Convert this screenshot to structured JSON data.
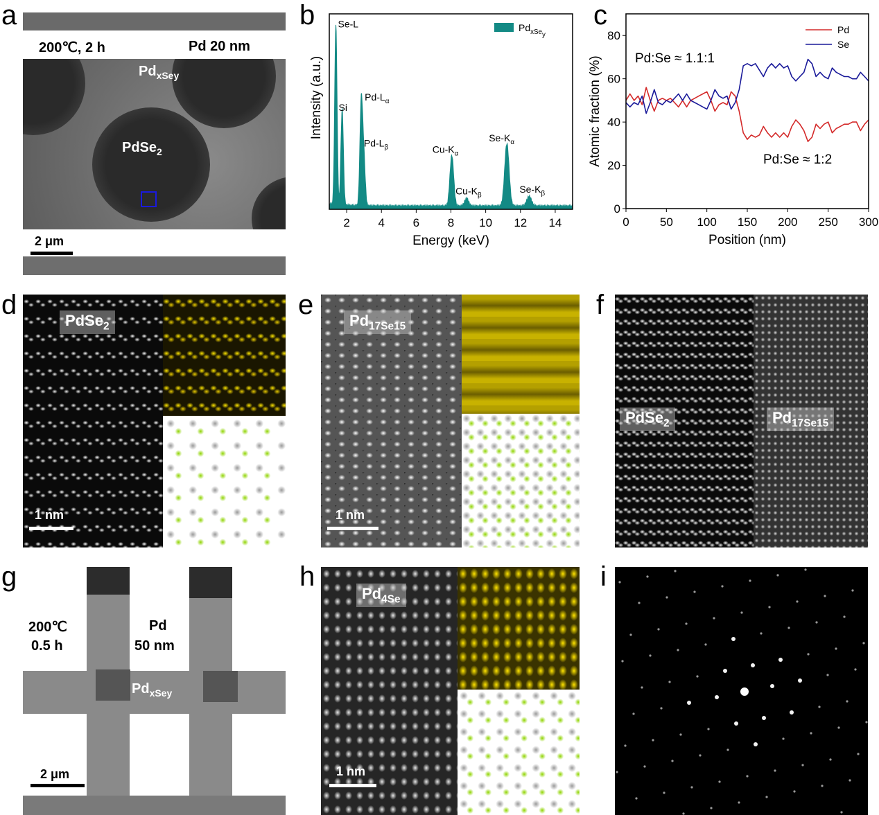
{
  "panel_letters": [
    "a",
    "b",
    "c",
    "d",
    "e",
    "f",
    "g",
    "h",
    "i"
  ],
  "panel_a": {
    "condition": "200℃, 2 h",
    "thickness": "Pd 20 nm",
    "region_outer": "Pd_xSe_y",
    "region_inner": "PdSe_2",
    "scale_bar": "2 μm",
    "box_color": "#1a1adc"
  },
  "panel_d": {
    "phase": "PdSe_2",
    "scale_bar": "1 nm"
  },
  "panel_e": {
    "phase": "Pd_17Se_15",
    "scale_bar": "1 nm"
  },
  "panel_f": {
    "phase_left": "PdSe_2",
    "phase_right": "Pd_17Se_15"
  },
  "panel_g": {
    "temperature": "200℃",
    "time": "0.5 h",
    "metal": "Pd",
    "thickness": "50 nm",
    "region": "Pd_xSe_y",
    "scale_bar": "2 μm"
  },
  "panel_h": {
    "phase": "Pd_4Se",
    "scale_bar": "1 nm"
  },
  "chart_data": [
    {
      "panel": "b",
      "type": "area",
      "xlabel": "Energy (keV)",
      "ylabel": "Intensity (a.u.)",
      "xlim": [
        1,
        15
      ],
      "xticks": [
        2,
        4,
        6,
        8,
        10,
        12,
        14
      ],
      "yticks_shown": false,
      "legend": {
        "label": "Pd_xSe_y",
        "position": "top-right"
      },
      "color": "#138a85",
      "peaks": [
        {
          "label": "Se-L",
          "energy": 1.38,
          "intensity": 92
        },
        {
          "label": "Si",
          "energy": 1.74,
          "intensity": 49
        },
        {
          "label": "Pd-L_α",
          "energy": 2.84,
          "intensity": 53
        },
        {
          "label": "Pd-L_β",
          "energy": 2.99,
          "intensity": 24
        },
        {
          "label": "Cu-K_α",
          "energy": 8.05,
          "intensity": 26
        },
        {
          "label": "Cu-K_β",
          "energy": 8.9,
          "intensity": 4
        },
        {
          "label": "Se-K_α",
          "energy": 11.22,
          "intensity": 32
        },
        {
          "label": "Se-K_β",
          "energy": 12.5,
          "intensity": 5
        }
      ]
    },
    {
      "panel": "c",
      "type": "line",
      "xlabel": "Position (nm)",
      "ylabel": "Atomic fraction (%)",
      "xlim": [
        0,
        300
      ],
      "ylim": [
        0,
        90
      ],
      "xticks": [
        0,
        50,
        100,
        150,
        200,
        250,
        300
      ],
      "yticks": [
        0,
        20,
        40,
        60,
        80
      ],
      "legend_position": "top-right",
      "annotations": [
        "Pd:Se ≈ 1.1:1",
        "Pd:Se ≈ 1:2"
      ],
      "x": [
        0,
        5,
        10,
        15,
        20,
        25,
        30,
        35,
        40,
        45,
        50,
        55,
        60,
        65,
        70,
        75,
        80,
        85,
        90,
        95,
        100,
        105,
        110,
        115,
        120,
        125,
        130,
        135,
        140,
        145,
        150,
        155,
        160,
        165,
        170,
        175,
        180,
        185,
        190,
        195,
        200,
        205,
        210,
        215,
        220,
        225,
        230,
        235,
        240,
        245,
        250,
        255,
        260,
        265,
        270,
        275,
        280,
        285,
        290,
        295,
        300
      ],
      "series": [
        {
          "name": "Pd",
          "color": "#d42a2a",
          "values": [
            50,
            53,
            50,
            52,
            48,
            56,
            50,
            45,
            50,
            51,
            50,
            51,
            49,
            47,
            50,
            47,
            50,
            51,
            52,
            53,
            54,
            50,
            45,
            48,
            49,
            48,
            54,
            52,
            45,
            35,
            32,
            34,
            33,
            34,
            38,
            35,
            33,
            35,
            33,
            35,
            33,
            38,
            41,
            39,
            36,
            31,
            33,
            39,
            37,
            39,
            40,
            35,
            37,
            38,
            39,
            39,
            40,
            40,
            36,
            39,
            41
          ]
        },
        {
          "name": "Se",
          "color": "#1a1a9a",
          "values": [
            49,
            47,
            49,
            48,
            52,
            44,
            49,
            55,
            49,
            48,
            50,
            49,
            51,
            53,
            50,
            53,
            50,
            49,
            48,
            47,
            46,
            50,
            55,
            52,
            51,
            52,
            46,
            49,
            55,
            66,
            67,
            66,
            67,
            64,
            61,
            65,
            67,
            65,
            67,
            65,
            66,
            61,
            59,
            61,
            63,
            69,
            67,
            61,
            63,
            61,
            60,
            65,
            63,
            62,
            61,
            61,
            60,
            60,
            63,
            61,
            59
          ]
        }
      ]
    }
  ]
}
